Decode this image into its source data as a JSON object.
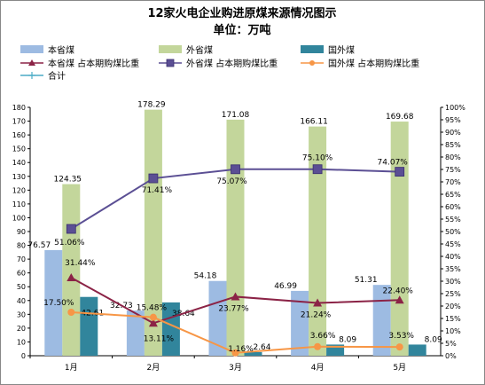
{
  "chart_data": {
    "type": "bar",
    "title": "12家火电企业购进原煤来源情况图示",
    "subtitle": "单位：万吨",
    "categories": [
      "1月",
      "2月",
      "3月",
      "4月",
      "5月"
    ],
    "y_left": {
      "min": 0,
      "max": 180,
      "step": 10
    },
    "y_right": {
      "min": 0,
      "max": 100,
      "step": 5,
      "unit": "%"
    },
    "bar_series": [
      {
        "name": "本省煤",
        "color": "#9DBBE2",
        "values": [
          76.57,
          32.73,
          54.18,
          46.99,
          51.31
        ],
        "labels": [
          "76.57",
          "32.73",
          "54.18",
          "46.99",
          "51.31"
        ]
      },
      {
        "name": "外省煤",
        "color": "#C3D69B",
        "values": [
          124.35,
          178.29,
          171.08,
          166.11,
          169.68
        ],
        "labels": [
          "124.35",
          "178.29",
          "171.08",
          "166.11",
          "169.68"
        ]
      },
      {
        "name": "国外煤",
        "color": "#31859C",
        "values": [
          42.61,
          38.64,
          2.64,
          8.09,
          8.09
        ],
        "labels": [
          "42.61",
          "38.64",
          "2.64",
          "8.09",
          "8.09"
        ]
      }
    ],
    "line_series": [
      {
        "name": "本省煤 占本期购煤比重",
        "color": "#8B2346",
        "marker": "triangle",
        "values": [
          31.44,
          13.11,
          23.77,
          21.24,
          22.4
        ],
        "labels": [
          "31.44%",
          "13.11%",
          "23.77%",
          "21.24%",
          "22.40%"
        ]
      },
      {
        "name": "外省煤 占本期购煤比重",
        "color": "#5B4F94",
        "marker": "square",
        "values": [
          51.06,
          71.41,
          75.07,
          75.1,
          74.07
        ],
        "labels": [
          "51.06%",
          "71.41%",
          "75.07%",
          "75.10%",
          "74.07%"
        ]
      },
      {
        "name": "国外煤 占本期购煤比重",
        "color": "#F79646",
        "marker": "circle",
        "values": [
          17.5,
          15.48,
          1.16,
          3.66,
          3.53
        ],
        "labels": [
          "17.50%",
          "15.48%",
          "1.16%",
          "3.66%",
          "3.53%"
        ]
      },
      {
        "name": "合计",
        "color": "#4BACC6",
        "marker": "plus",
        "values": []
      }
    ],
    "legend": [
      {
        "name": "本省煤",
        "kind": "bar",
        "color": "#9DBBE2"
      },
      {
        "name": "外省煤",
        "kind": "bar",
        "color": "#C3D69B"
      },
      {
        "name": "国外煤",
        "kind": "bar",
        "color": "#31859C"
      },
      {
        "name": "本省煤 占本期购煤比重",
        "kind": "line",
        "marker": "triangle",
        "color": "#8B2346"
      },
      {
        "name": "外省煤 占本期购煤比重",
        "kind": "line",
        "marker": "square",
        "color": "#5B4F94"
      },
      {
        "name": "国外煤 占本期购煤比重",
        "kind": "line",
        "marker": "circle",
        "color": "#F79646"
      },
      {
        "name": "合计",
        "kind": "line",
        "marker": "plus",
        "color": "#4BACC6"
      }
    ],
    "legend_position": "top",
    "grid": false
  }
}
